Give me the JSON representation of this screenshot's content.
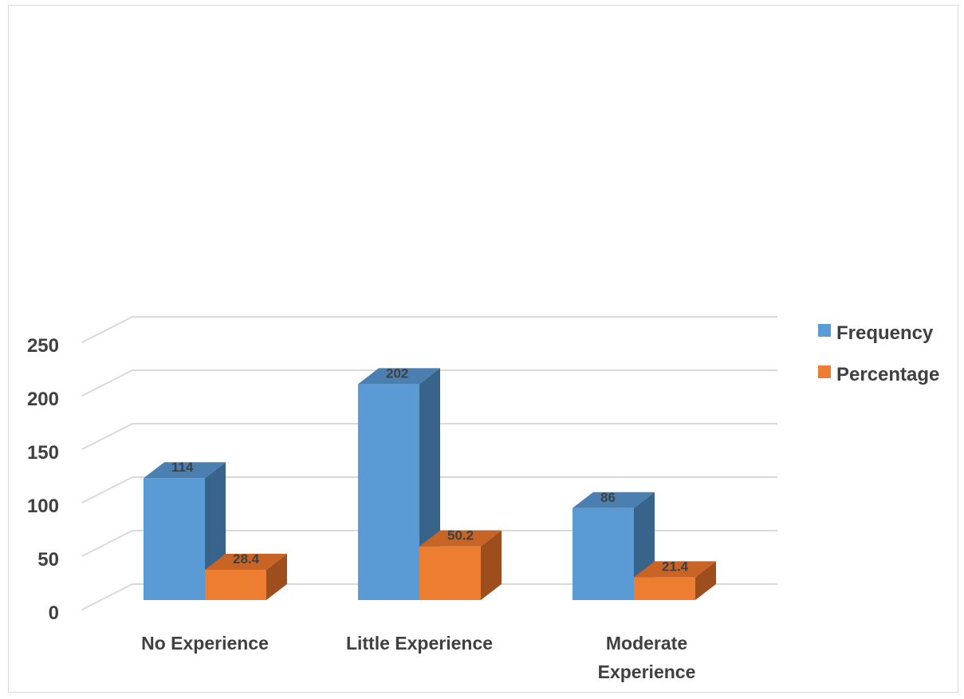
{
  "chart_data": {
    "type": "bar",
    "title": "",
    "xlabel": "",
    "ylabel": "",
    "ylim": [
      0,
      250
    ],
    "yticks": [
      0,
      50,
      100,
      150,
      200,
      250
    ],
    "grid": true,
    "legend_position": "right",
    "categories": [
      [
        "No Experience"
      ],
      [
        "Little Experience"
      ],
      [
        "Moderate",
        "Experience"
      ]
    ],
    "series": [
      {
        "name": "Frequency",
        "values": [
          114,
          202,
          86
        ],
        "labels": [
          "114",
          "202",
          "86"
        ],
        "color": "#5b9bd5",
        "top_color": "#4a7fb0",
        "side_color": "#38638b"
      },
      {
        "name": "Percentage",
        "values": [
          28.4,
          50.2,
          21.4
        ],
        "labels": [
          "28.4",
          "50.2",
          "21.4"
        ],
        "color": "#ed7d31",
        "top_color": "#c86526",
        "side_color": "#9e4d1c"
      }
    ]
  }
}
